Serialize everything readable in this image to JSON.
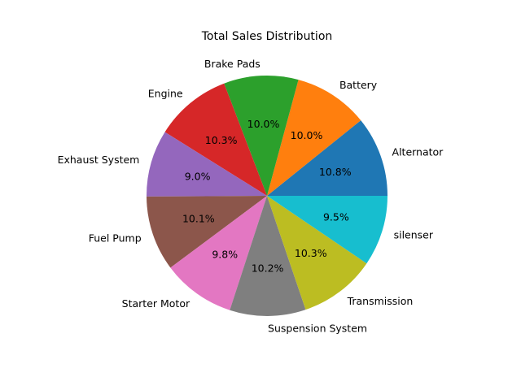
{
  "chart_data": {
    "type": "pie",
    "title": "Total Sales Distribution",
    "start_angle_deg": 0,
    "direction": "counterclockwise",
    "slices": [
      {
        "label": "Alternator",
        "percent": 10.8,
        "percent_label": "10.8%",
        "color": "#1f77b4"
      },
      {
        "label": "Battery",
        "percent": 10.0,
        "percent_label": "10.0%",
        "color": "#ff7f0e"
      },
      {
        "label": "Brake Pads",
        "percent": 10.0,
        "percent_label": "10.0%",
        "color": "#2ca02c"
      },
      {
        "label": "Engine",
        "percent": 10.3,
        "percent_label": "10.3%",
        "color": "#d62728"
      },
      {
        "label": "Exhaust System",
        "percent": 9.0,
        "percent_label": "9.0%",
        "color": "#9467bd"
      },
      {
        "label": "Fuel Pump",
        "percent": 10.1,
        "percent_label": "10.1%",
        "color": "#8c564b"
      },
      {
        "label": "Starter Motor",
        "percent": 9.8,
        "percent_label": "9.8%",
        "color": "#e377c2"
      },
      {
        "label": "Suspension System",
        "percent": 10.2,
        "percent_label": "10.2%",
        "color": "#7f7f7f"
      },
      {
        "label": "Transmission",
        "percent": 10.3,
        "percent_label": "10.3%",
        "color": "#bcbd22"
      },
      {
        "label": "silenser",
        "percent": 9.5,
        "percent_label": "9.5%",
        "color": "#17becf"
      }
    ]
  }
}
